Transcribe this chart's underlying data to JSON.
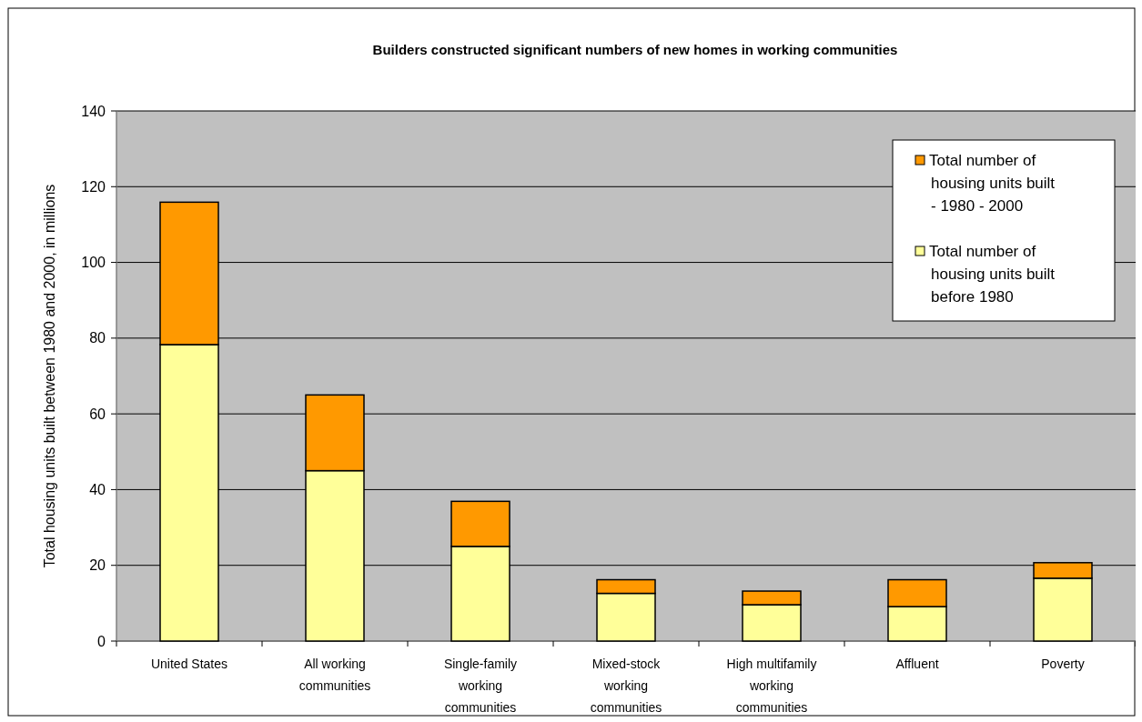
{
  "chart_data": {
    "type": "bar",
    "title": "Builders constructed significant numbers of new homes in working communities",
    "ylabel": "Total housing units built between 1980 and 2000, in millions",
    "categories": [
      "United States",
      "All working communities",
      "Single-family working communities",
      "Mixed-stock working communities",
      "High multifamily working communities",
      "Affluent",
      "Poverty"
    ],
    "stacked": true,
    "series": [
      {
        "name": "Total number of housing units built before 1980",
        "color": "#ffff99",
        "values": [
          78.3,
          45,
          25,
          12.6,
          9.6,
          9.1,
          16.6
        ]
      },
      {
        "name": "Total number of housing units built - 1980 - 2000",
        "color": "#ff9900",
        "values": [
          37.6,
          20,
          11.9,
          3.6,
          3.6,
          7.1,
          4.1
        ]
      }
    ],
    "ylim": [
      0,
      140
    ],
    "yticks": [
      0,
      20,
      40,
      60,
      80,
      100,
      120,
      140
    ],
    "grid": "y",
    "legend": "top right"
  }
}
